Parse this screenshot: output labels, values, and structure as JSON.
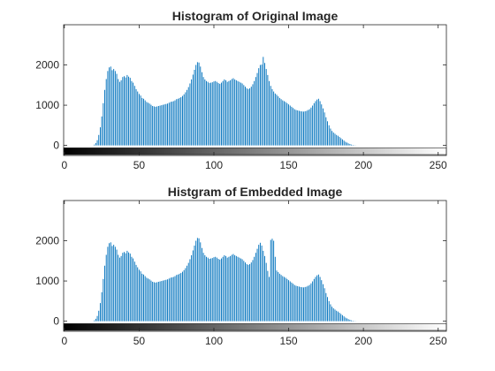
{
  "figure": {
    "background": "#ffffff",
    "axis_color": "#262626",
    "bar_color": "#0072bd"
  },
  "chart_data": [
    {
      "type": "bar",
      "title": "Histogram of Original Image",
      "xlabel": "",
      "ylabel": "",
      "xlim": [
        -0.5,
        255.5
      ],
      "ylim": [
        -250,
        3000
      ],
      "x_ticks": [
        0,
        50,
        100,
        150,
        200,
        250
      ],
      "y_ticks": [
        0,
        1000,
        2000
      ],
      "colorbar": "grayscale 0-255",
      "x_start": 0,
      "x_step": 1,
      "values": [
        0,
        0,
        0,
        0,
        0,
        0,
        0,
        0,
        0,
        0,
        0,
        0,
        0,
        0,
        0,
        0,
        0,
        0,
        0,
        0,
        20,
        60,
        130,
        260,
        450,
        720,
        1050,
        1380,
        1650,
        1850,
        1940,
        1960,
        1870,
        1900,
        1850,
        1780,
        1650,
        1580,
        1620,
        1700,
        1720,
        1690,
        1750,
        1710,
        1680,
        1600,
        1560,
        1480,
        1400,
        1340,
        1280,
        1240,
        1180,
        1160,
        1120,
        1080,
        1060,
        1040,
        1010,
        980,
        970,
        960,
        970,
        980,
        990,
        1000,
        1010,
        1020,
        1030,
        1040,
        1060,
        1080,
        1090,
        1100,
        1120,
        1150,
        1160,
        1180,
        1200,
        1230,
        1270,
        1320,
        1380,
        1450,
        1540,
        1640,
        1760,
        1880,
        2000,
        2070,
        2060,
        1960,
        1820,
        1700,
        1640,
        1600,
        1580,
        1550,
        1560,
        1570,
        1590,
        1600,
        1580,
        1550,
        1530,
        1560,
        1600,
        1640,
        1620,
        1580,
        1600,
        1620,
        1650,
        1670,
        1640,
        1620,
        1600,
        1580,
        1560,
        1540,
        1500,
        1460,
        1420,
        1400,
        1420,
        1460,
        1520,
        1600,
        1700,
        1800,
        1920,
        2000,
        2010,
        2200,
        2050,
        1900,
        1750,
        1600,
        1480,
        1400,
        1340,
        1290,
        1260,
        1220,
        1180,
        1150,
        1120,
        1100,
        1080,
        1050,
        1020,
        990,
        960,
        930,
        900,
        880,
        870,
        860,
        850,
        845,
        840,
        850,
        860,
        880,
        900,
        940,
        990,
        1050,
        1100,
        1140,
        1160,
        1100,
        1020,
        920,
        820,
        700,
        600,
        500,
        420,
        360,
        320,
        290,
        260,
        240,
        210,
        180,
        150,
        120,
        90,
        70,
        50,
        35,
        20,
        10,
        5,
        2,
        0,
        0,
        0,
        0,
        0,
        0,
        0,
        0,
        0,
        0,
        0,
        0,
        0,
        0,
        0,
        0,
        0,
        0,
        0,
        0
      ]
    },
    {
      "type": "bar",
      "title": "Histgram of Embedded Image",
      "xlabel": "",
      "ylabel": "",
      "xlim": [
        -0.5,
        255.5
      ],
      "ylim": [
        -250,
        3000
      ],
      "x_ticks": [
        0,
        50,
        100,
        150,
        200,
        250
      ],
      "y_ticks": [
        0,
        1000,
        2000
      ],
      "colorbar": "grayscale 0-255",
      "x_start": 0,
      "x_step": 1,
      "values": [
        0,
        0,
        0,
        0,
        0,
        0,
        0,
        0,
        0,
        0,
        0,
        0,
        0,
        0,
        0,
        0,
        0,
        0,
        0,
        0,
        20,
        60,
        130,
        260,
        450,
        720,
        1050,
        1380,
        1650,
        1850,
        1940,
        1960,
        1870,
        1900,
        1850,
        1780,
        1650,
        1580,
        1620,
        1700,
        1720,
        1690,
        1750,
        1710,
        1680,
        1600,
        1560,
        1480,
        1400,
        1340,
        1280,
        1240,
        1180,
        1160,
        1120,
        1080,
        1060,
        1040,
        1010,
        980,
        970,
        960,
        970,
        980,
        990,
        1000,
        1010,
        1020,
        1030,
        1040,
        1060,
        1080,
        1090,
        1100,
        1120,
        1150,
        1160,
        1180,
        1200,
        1230,
        1270,
        1320,
        1380,
        1450,
        1540,
        1640,
        1760,
        1880,
        2000,
        2070,
        2060,
        1960,
        1820,
        1700,
        1640,
        1600,
        1580,
        1550,
        1560,
        1570,
        1590,
        1600,
        1580,
        1550,
        1530,
        1560,
        1600,
        1640,
        1620,
        1580,
        1600,
        1620,
        1650,
        1670,
        1640,
        1620,
        1600,
        1580,
        1560,
        1540,
        1500,
        1460,
        1420,
        1400,
        1420,
        1460,
        1520,
        1600,
        1700,
        1800,
        1900,
        1950,
        1880,
        1750,
        1620,
        1450,
        1250,
        1100,
        2020,
        2050,
        2000,
        1600,
        1260,
        1220,
        1180,
        1150,
        1120,
        1100,
        1080,
        1050,
        1020,
        990,
        960,
        930,
        900,
        880,
        870,
        860,
        850,
        845,
        840,
        850,
        860,
        880,
        900,
        940,
        990,
        1050,
        1100,
        1140,
        1160,
        1100,
        1020,
        920,
        820,
        700,
        600,
        500,
        420,
        360,
        320,
        290,
        260,
        240,
        210,
        180,
        150,
        120,
        90,
        70,
        50,
        35,
        20,
        10,
        5,
        2,
        0,
        0,
        0,
        0,
        0,
        0,
        0,
        0,
        0,
        0,
        0,
        0,
        0,
        0,
        0,
        0,
        0,
        0,
        0,
        0
      ]
    }
  ]
}
